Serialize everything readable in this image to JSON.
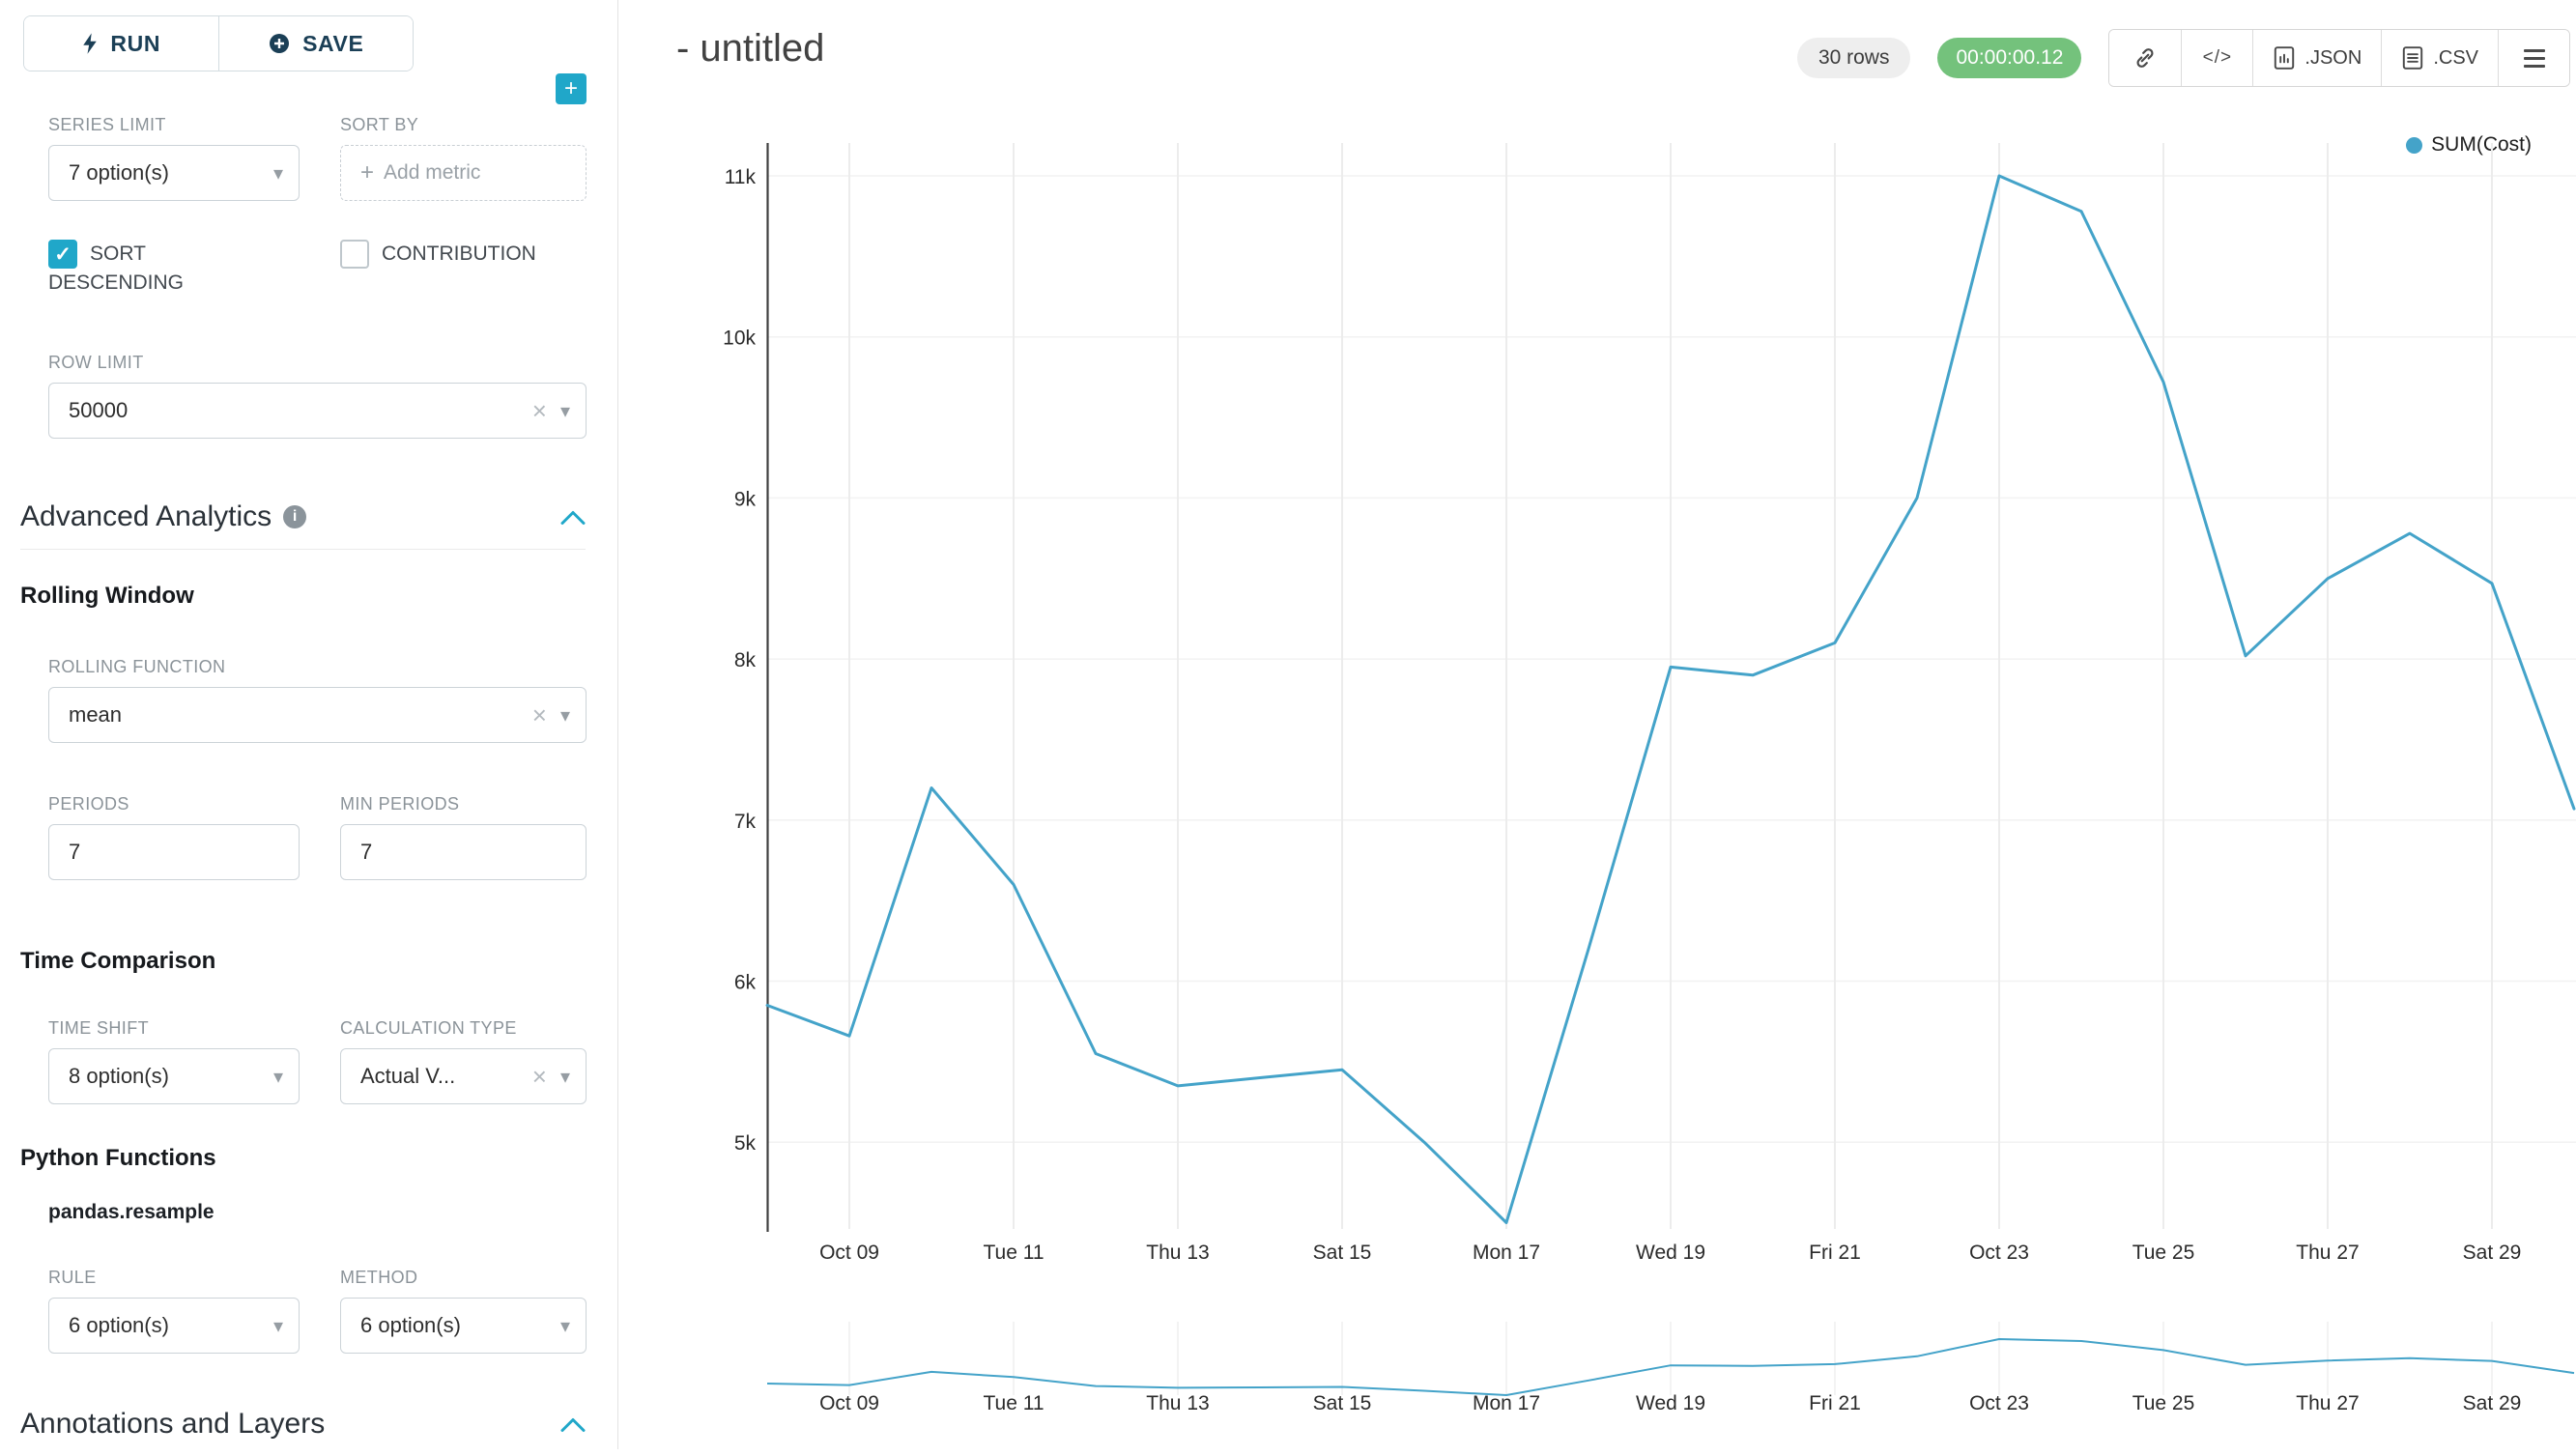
{
  "icons": {
    "caret_down": "▾",
    "clear": "×",
    "plus": "+",
    "check": "✓",
    "code": "</>"
  },
  "colors": {
    "accent": "#20a7c9",
    "timer_badge_green": "#74c27c",
    "rows_badge_gray": "#eeeeee",
    "line": "#44a3c9"
  },
  "sidebar": {
    "run_label": "RUN",
    "save_label": "SAVE",
    "series_limit": {
      "label": "SERIES LIMIT",
      "value": "7 option(s)"
    },
    "sort_by": {
      "label": "SORT BY",
      "placeholder": "Add metric"
    },
    "sort_descending": {
      "label": "SORT DESCENDING",
      "checked": true
    },
    "contribution": {
      "label": "CONTRIBUTION",
      "checked": false
    },
    "row_limit": {
      "label": "ROW LIMIT",
      "value": "50000"
    },
    "advanced_analytics_title": "Advanced Analytics",
    "rolling_window_title": "Rolling Window",
    "rolling_function": {
      "label": "ROLLING FUNCTION",
      "value": "mean"
    },
    "periods": {
      "label": "PERIODS",
      "value": "7"
    },
    "min_periods": {
      "label": "MIN PERIODS",
      "value": "7"
    },
    "time_comparison_title": "Time Comparison",
    "time_shift": {
      "label": "TIME SHIFT",
      "value": "8 option(s)"
    },
    "calculation_type": {
      "label": "CALCULATION TYPE",
      "value": "Actual V..."
    },
    "python_functions_title": "Python Functions",
    "resample_label": "pandas.resample",
    "rule": {
      "label": "RULE",
      "value": "6 option(s)"
    },
    "method": {
      "label": "METHOD",
      "value": "6 option(s)"
    },
    "annotations_title": "Annotations and Layers"
  },
  "header": {
    "title": "- untitled",
    "rows_badge": "30 rows",
    "timer_badge": "00:00:00.12",
    "json_button": ".JSON",
    "csv_button": ".CSV"
  },
  "chart_data": {
    "type": "line",
    "title": "- untitled",
    "legend": "SUM(Cost)",
    "legend_position": "top-right",
    "grid": true,
    "has_focus_chart": true,
    "line_color": "#44a3c9",
    "series": [
      {
        "name": "SUM(Cost)",
        "x": [
          "Oct 08",
          "Oct 09",
          "Oct 10",
          "Oct 11",
          "Oct 12",
          "Oct 13",
          "Oct 14",
          "Oct 15",
          "Oct 16",
          "Oct 17",
          "Oct 18",
          "Oct 19",
          "Oct 20",
          "Oct 21",
          "Oct 22",
          "Oct 23",
          "Oct 24",
          "Oct 25",
          "Oct 26",
          "Oct 27",
          "Oct 28",
          "Oct 29",
          "Oct 30"
        ],
        "values": [
          5850,
          5660,
          7200,
          6600,
          5550,
          5350,
          5400,
          5450,
          5000,
          4500,
          6200,
          7950,
          7900,
          8100,
          9000,
          11000,
          10780,
          9720,
          8020,
          8500,
          8780,
          8470,
          7070
        ]
      }
    ],
    "x_tick_labels": [
      "Oct 09",
      "Tue 11",
      "Thu 13",
      "Sat 15",
      "Mon 17",
      "Wed 19",
      "Fri 21",
      "Oct 23",
      "Tue 25",
      "Thu 27",
      "Sat 29"
    ],
    "y_tick_labels": [
      "5k",
      "6k",
      "7k",
      "8k",
      "9k",
      "10k",
      "11k"
    ],
    "y_tick_values": [
      5000,
      6000,
      7000,
      8000,
      9000,
      10000,
      11000
    ],
    "ylim": [
      4400,
      11300
    ]
  }
}
